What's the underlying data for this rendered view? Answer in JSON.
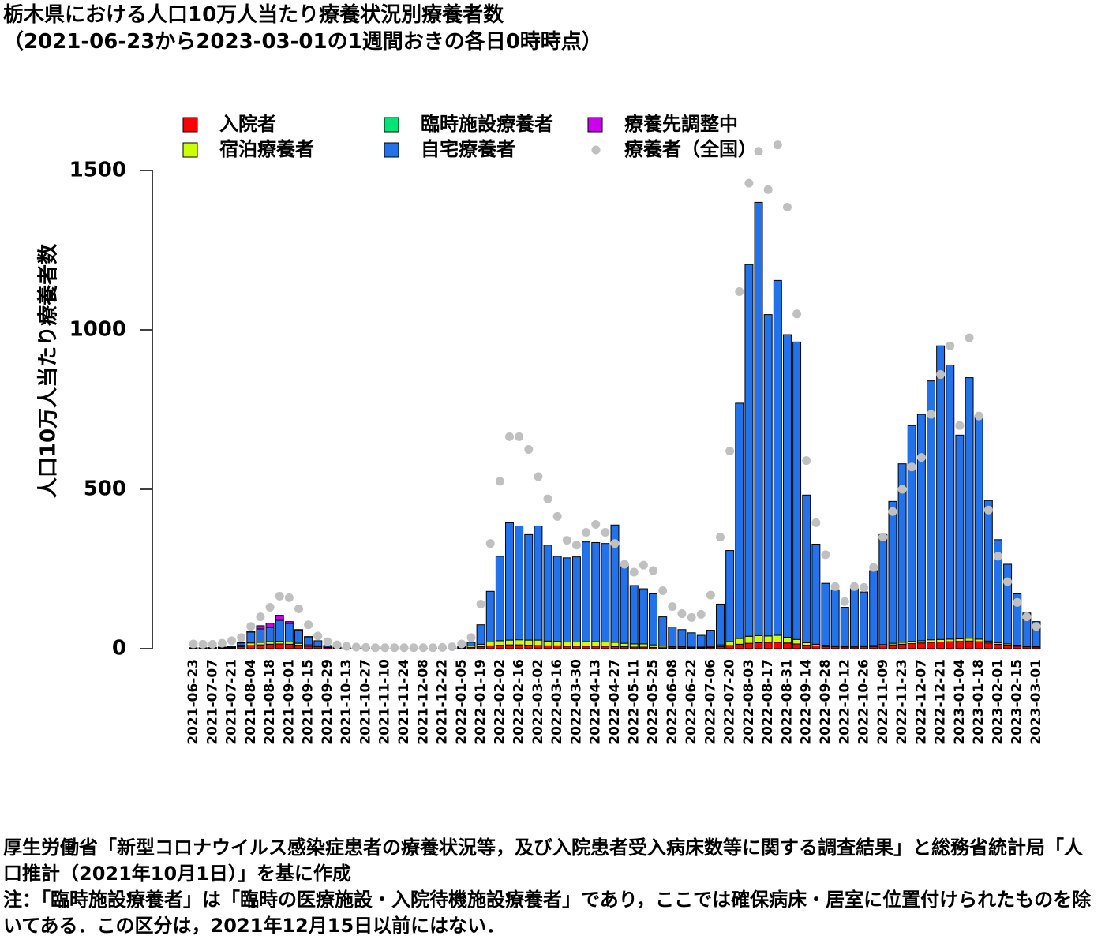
{
  "chart_data": {
    "type": "bar",
    "stacked": true,
    "title": "栃木県における人口10万人当たり療養状況別療養者数",
    "subtitle": "（2021-06-23から2023-03-01の1週間おきの各日0時時点）",
    "y_label": "人口10万人当たり療養者数",
    "notes": [
      "厚生労働省「新型コロナウイルス感染症患者の療養状況等，及び入院患者受入病床数等に関する調査結果」と総務省統計局「人口推計（2021年10月1日）」を基に作成",
      "注：「臨時施設療養者」は「臨時の医療施設・入院待機施設療養者」であり，ここでは確保病床・居室に位置付けられたものを除いてある．この区分は，2021年12月15日以前にはない．"
    ],
    "ylim": [
      0,
      1500
    ],
    "yticks": [
      0,
      500,
      1000,
      1500
    ],
    "categories": [
      "2021-06-23",
      null,
      "2021-07-07",
      null,
      "2021-07-21",
      null,
      "2021-08-04",
      null,
      "2021-08-18",
      null,
      "2021-09-01",
      null,
      "2021-09-15",
      null,
      "2021-09-29",
      null,
      "2021-10-13",
      null,
      "2021-10-27",
      null,
      "2021-11-10",
      null,
      "2021-11-24",
      null,
      "2021-12-08",
      null,
      "2021-12-22",
      null,
      "2022-01-05",
      null,
      "2022-01-19",
      null,
      "2022-02-02",
      null,
      "2022-02-16",
      null,
      "2022-03-02",
      null,
      "2022-03-16",
      null,
      "2022-03-30",
      null,
      "2022-04-13",
      null,
      "2022-04-27",
      null,
      "2022-05-11",
      null,
      "2022-05-25",
      null,
      "2022-06-08",
      null,
      "2022-06-22",
      null,
      "2022-07-06",
      null,
      "2022-07-20",
      null,
      "2022-08-03",
      null,
      "2022-08-17",
      null,
      "2022-08-31",
      null,
      "2022-09-14",
      null,
      "2022-09-28",
      null,
      "2022-10-12",
      null,
      "2022-10-26",
      null,
      "2022-11-09",
      null,
      "2022-11-23",
      null,
      "2022-12-07",
      null,
      "2022-12-21",
      null,
      "2023-01-04",
      null,
      "2023-01-18",
      null,
      "2023-02-01",
      null,
      "2023-02-15",
      null,
      "2023-03-01"
    ],
    "series": [
      {
        "name": "入院者",
        "color": "#ff0000",
        "values": [
          2,
          2,
          2,
          2,
          3,
          6,
          10,
          12,
          14,
          15,
          14,
          11,
          8,
          6,
          4,
          3,
          2,
          1,
          1,
          1,
          1,
          1,
          1,
          1,
          1,
          1,
          1,
          1,
          2,
          4,
          6,
          9,
          11,
          12,
          12,
          11,
          10,
          9,
          9,
          8,
          8,
          8,
          8,
          8,
          7,
          6,
          5,
          5,
          4,
          3,
          3,
          3,
          3,
          3,
          4,
          6,
          10,
          14,
          17,
          19,
          20,
          20,
          18,
          15,
          11,
          9,
          7,
          6,
          5,
          5,
          6,
          7,
          9,
          12,
          14,
          16,
          18,
          20,
          21,
          22,
          23,
          24,
          22,
          18,
          14,
          11,
          8,
          6,
          5
        ]
      },
      {
        "name": "宿泊療養者",
        "color": "#ccff00",
        "values": [
          0,
          0,
          0,
          1,
          2,
          5,
          8,
          8,
          8,
          8,
          7,
          6,
          4,
          3,
          1,
          1,
          0,
          0,
          0,
          0,
          0,
          0,
          0,
          0,
          0,
          0,
          0,
          0,
          2,
          5,
          8,
          12,
          14,
          15,
          16,
          16,
          17,
          15,
          14,
          13,
          13,
          14,
          14,
          13,
          13,
          11,
          10,
          10,
          8,
          5,
          3,
          3,
          2,
          2,
          3,
          6,
          12,
          18,
          22,
          22,
          20,
          22,
          18,
          14,
          8,
          5,
          4,
          3,
          2,
          3,
          3,
          3,
          4,
          5,
          6,
          7,
          7,
          8,
          8,
          8,
          8,
          9,
          8,
          6,
          5,
          4,
          3,
          2,
          2
        ]
      },
      {
        "name": "臨時施設療養者",
        "color": "#00e676",
        "values": [
          null,
          null,
          null,
          null,
          null,
          null,
          null,
          null,
          null,
          null,
          null,
          null,
          null,
          null,
          null,
          null,
          null,
          null,
          null,
          null,
          null,
          null,
          null,
          null,
          null,
          null,
          0,
          0,
          0,
          0,
          0,
          0,
          0,
          0,
          0,
          0,
          0,
          0,
          0,
          0,
          0,
          0,
          0,
          0,
          0,
          0,
          0,
          0,
          0,
          0,
          0,
          0,
          0,
          0,
          0,
          0,
          0,
          0,
          0,
          0,
          0,
          0,
          0,
          0,
          0,
          0,
          0,
          0,
          0,
          0,
          0,
          0,
          0,
          0,
          0,
          0,
          0,
          0,
          0,
          0,
          0,
          0,
          0,
          0,
          0,
          0,
          0,
          0,
          0
        ]
      },
      {
        "name": "自宅療養者",
        "color": "#2272ec",
        "values": [
          1,
          1,
          2,
          2,
          3,
          7,
          34,
          42,
          44,
          66,
          58,
          40,
          25,
          16,
          5,
          1,
          1,
          1,
          1,
          0,
          0,
          0,
          0,
          0,
          0,
          0,
          1,
          2,
          4,
          11,
          61,
          159,
          265,
          368,
          357,
          331,
          358,
          301,
          267,
          264,
          267,
          313,
          311,
          309,
          368,
          248,
          183,
          173,
          160,
          92,
          62,
          54,
          45,
          37,
          51,
          128,
          286,
          738,
          1166,
          1359,
          1008,
          1113,
          949,
          933,
          463,
          314,
          194,
          176,
          123,
          180,
          169,
          235,
          345,
          445,
          560,
          677,
          710,
          812,
          921,
          860,
          639,
          817,
          700,
          441,
          323,
          250,
          161,
          104,
          78
        ]
      },
      {
        "name": "療養先調整中",
        "color": "#cc00ee",
        "values": [
          0,
          0,
          0,
          0,
          0,
          2,
          3,
          10,
          14,
          16,
          6,
          3,
          1,
          0,
          0,
          0,
          0,
          0,
          0,
          0,
          0,
          0,
          0,
          0,
          0,
          0,
          0,
          0,
          0,
          0,
          0,
          0,
          0,
          0,
          0,
          0,
          0,
          0,
          0,
          0,
          0,
          0,
          0,
          0,
          0,
          0,
          0,
          0,
          0,
          0,
          0,
          0,
          0,
          0,
          0,
          0,
          0,
          0,
          0,
          0,
          0,
          0,
          0,
          0,
          0,
          0,
          0,
          0,
          0,
          0,
          0,
          0,
          0,
          0,
          0,
          0,
          0,
          0,
          0,
          0,
          0,
          0,
          0,
          0,
          0,
          0,
          0,
          0,
          0
        ]
      },
      {
        "name": "療養者（全国）",
        "color": "#c0c0c0",
        "type": "scatter",
        "values": [
          15,
          14,
          14,
          17,
          25,
          35,
          70,
          100,
          130,
          165,
          160,
          125,
          75,
          40,
          22,
          12,
          7,
          5,
          4,
          3,
          3,
          3,
          3,
          3,
          3,
          3,
          4,
          6,
          15,
          35,
          140,
          330,
          525,
          665,
          665,
          625,
          540,
          470,
          415,
          340,
          325,
          365,
          390,
          365,
          330,
          265,
          240,
          262,
          245,
          182,
          132,
          110,
          98,
          108,
          168,
          350,
          620,
          1120,
          1460,
          1560,
          1440,
          1580,
          1385,
          1050,
          590,
          395,
          295,
          195,
          148,
          195,
          192,
          255,
          350,
          430,
          500,
          570,
          600,
          735,
          860,
          950,
          700,
          975,
          730,
          435,
          290,
          210,
          145,
          100,
          70
        ]
      }
    ]
  }
}
